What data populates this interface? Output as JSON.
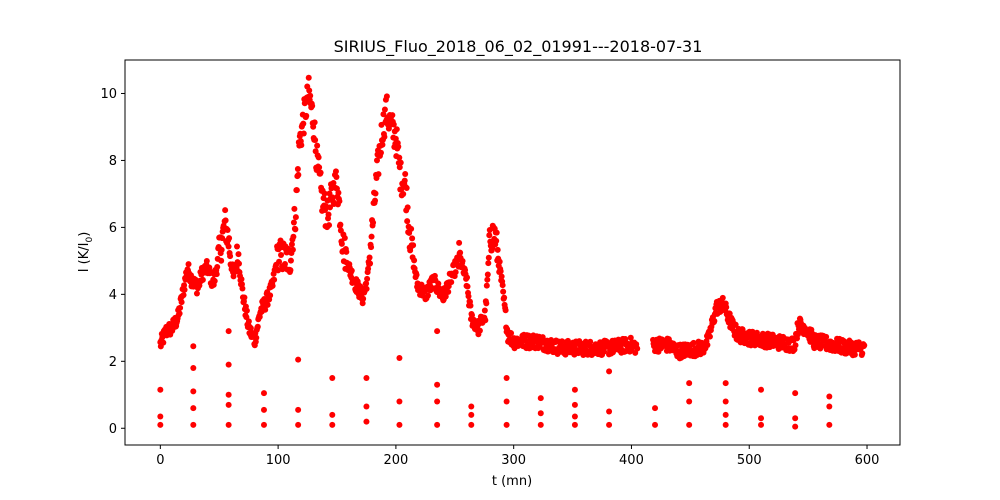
{
  "chart_data": {
    "type": "scatter",
    "title": "SIRIUS_Fluo_2018_06_02_01991---2018-07-31",
    "xlabel": "t (mn)",
    "ylabel_main": "I (K/I",
    "ylabel_sub": "0",
    "ylabel_tail": ")",
    "xlim": [
      -30,
      628
    ],
    "ylim": [
      -0.5,
      11.0
    ],
    "xticks": [
      0,
      100,
      200,
      300,
      400,
      500,
      600
    ],
    "yticks": [
      0,
      2,
      4,
      6,
      8,
      10
    ],
    "marker_color": "#ff0000",
    "grid": false,
    "series": [
      {
        "trend": [
          [
            0,
            2.5
          ],
          [
            5,
            2.9
          ],
          [
            10,
            3.0
          ],
          [
            15,
            3.3
          ],
          [
            20,
            4.2
          ],
          [
            23,
            4.8
          ],
          [
            27,
            4.4
          ],
          [
            32,
            4.2
          ],
          [
            35,
            4.6
          ],
          [
            40,
            4.8
          ],
          [
            45,
            4.3
          ],
          [
            50,
            5.2
          ],
          [
            55,
            6.1
          ],
          [
            58,
            5.6
          ],
          [
            62,
            4.5
          ],
          [
            66,
            5.2
          ],
          [
            70,
            4.0
          ],
          [
            75,
            3.0
          ],
          [
            80,
            2.6
          ],
          [
            85,
            3.5
          ],
          [
            90,
            3.8
          ],
          [
            95,
            4.2
          ],
          [
            100,
            5.2
          ],
          [
            105,
            5.1
          ],
          [
            110,
            5.0
          ],
          [
            115,
            6.5
          ],
          [
            118,
            8.5
          ],
          [
            122,
            9.3
          ],
          [
            126,
            10.0
          ],
          [
            130,
            9.2
          ],
          [
            133,
            8.0
          ],
          [
            137,
            6.9
          ],
          [
            142,
            6.3
          ],
          [
            146,
            7.0
          ],
          [
            150,
            7.4
          ],
          [
            155,
            5.5
          ],
          [
            160,
            4.8
          ],
          [
            166,
            4.3
          ],
          [
            172,
            3.9
          ],
          [
            176,
            4.5
          ],
          [
            180,
            6.0
          ],
          [
            184,
            7.6
          ],
          [
            188,
            8.8
          ],
          [
            192,
            9.5
          ],
          [
            196,
            9.0
          ],
          [
            200,
            8.7
          ],
          [
            204,
            7.5
          ],
          [
            208,
            7.3
          ],
          [
            212,
            5.7
          ],
          [
            218,
            4.3
          ],
          [
            225,
            4.0
          ],
          [
            232,
            4.4
          ],
          [
            240,
            3.9
          ],
          [
            248,
            4.6
          ],
          [
            254,
            5.1
          ],
          [
            260,
            4.4
          ],
          [
            264,
            3.3
          ],
          [
            270,
            3.0
          ],
          [
            276,
            3.4
          ],
          [
            280,
            5.7
          ],
          [
            284,
            5.8
          ],
          [
            290,
            4.3
          ],
          [
            295,
            2.8
          ],
          [
            300,
            2.6
          ],
          [
            320,
            2.6
          ],
          [
            340,
            2.4
          ],
          [
            360,
            2.4
          ],
          [
            380,
            2.4
          ],
          [
            400,
            2.5
          ],
          [
            412,
            2.3
          ],
          [
            420,
            2.5
          ],
          [
            430,
            2.5
          ],
          [
            440,
            2.3
          ],
          [
            460,
            2.4
          ],
          [
            465,
            2.6
          ],
          [
            472,
            3.6
          ],
          [
            478,
            3.7
          ],
          [
            485,
            3.1
          ],
          [
            490,
            2.8
          ],
          [
            500,
            2.7
          ],
          [
            520,
            2.6
          ],
          [
            538,
            2.5
          ],
          [
            542,
            3.1
          ],
          [
            548,
            3.0
          ],
          [
            555,
            2.6
          ],
          [
            570,
            2.5
          ],
          [
            585,
            2.4
          ],
          [
            598,
            2.4
          ]
        ],
        "outliers": [
          [
            0,
            1.15
          ],
          [
            0,
            0.35
          ],
          [
            0,
            0.1
          ],
          [
            28,
            2.45
          ],
          [
            28,
            1.8
          ],
          [
            28,
            1.1
          ],
          [
            28,
            0.6
          ],
          [
            28,
            0.1
          ],
          [
            58,
            2.9
          ],
          [
            58,
            1.9
          ],
          [
            58,
            1.0
          ],
          [
            58,
            0.7
          ],
          [
            58,
            0.1
          ],
          [
            88,
            1.05
          ],
          [
            88,
            0.55
          ],
          [
            88,
            0.1
          ],
          [
            117,
            2.05
          ],
          [
            117,
            0.55
          ],
          [
            117,
            0.1
          ],
          [
            146,
            1.5
          ],
          [
            146,
            0.4
          ],
          [
            146,
            0.1
          ],
          [
            175,
            1.5
          ],
          [
            175,
            0.65
          ],
          [
            175,
            0.2
          ],
          [
            203,
            2.1
          ],
          [
            203,
            0.8
          ],
          [
            203,
            0.1
          ],
          [
            235,
            2.9
          ],
          [
            235,
            1.3
          ],
          [
            235,
            0.8
          ],
          [
            235,
            0.1
          ],
          [
            264,
            0.65
          ],
          [
            264,
            0.4
          ],
          [
            264,
            0.1
          ],
          [
            294,
            1.5
          ],
          [
            294,
            0.8
          ],
          [
            294,
            0.1
          ],
          [
            323,
            0.9
          ],
          [
            323,
            0.45
          ],
          [
            323,
            0.1
          ],
          [
            352,
            1.15
          ],
          [
            352,
            0.7
          ],
          [
            352,
            0.35
          ],
          [
            352,
            0.1
          ],
          [
            381,
            1.7
          ],
          [
            381,
            0.5
          ],
          [
            381,
            0.1
          ],
          [
            420,
            0.6
          ],
          [
            420,
            0.1
          ],
          [
            449,
            1.35
          ],
          [
            449,
            0.8
          ],
          [
            449,
            0.1
          ],
          [
            480,
            1.35
          ],
          [
            480,
            0.8
          ],
          [
            480,
            0.4
          ],
          [
            480,
            0.1
          ],
          [
            510,
            1.15
          ],
          [
            510,
            0.3
          ],
          [
            510,
            0.1
          ],
          [
            539,
            1.05
          ],
          [
            539,
            0.3
          ],
          [
            539,
            0.05
          ],
          [
            568,
            0.95
          ],
          [
            568,
            0.65
          ],
          [
            568,
            0.1
          ]
        ]
      }
    ]
  }
}
